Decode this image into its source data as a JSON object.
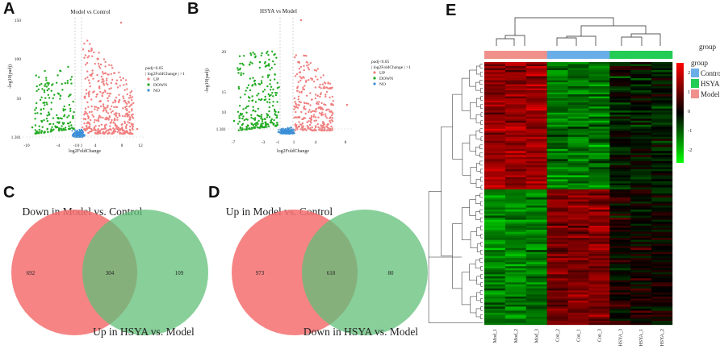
{
  "panels": {
    "a": {
      "letter": "A",
      "title": "Model vs Control",
      "xlabel": "log2FoldChange",
      "ylabel": "-log10(padj)"
    },
    "b": {
      "letter": "B",
      "title": "HSYA vs Model",
      "xlabel": "log2FoldChange",
      "ylabel": "-log10(padj)"
    },
    "c": {
      "letter": "C",
      "set_left": "Down in Model vs. Control",
      "set_right": "Up in HSYA vs. Model",
      "only_left": "692",
      "overlap": "304",
      "only_right": "109"
    },
    "d": {
      "letter": "D",
      "set_left": "Up in Model vs. Control",
      "set_right": "Down in HSYA vs. Model",
      "only_left": "973",
      "overlap": "618",
      "only_right": "80"
    },
    "e": {
      "letter": "E"
    }
  },
  "legend_volcano": {
    "line1": "padj<0.05",
    "line2": "| log2FoldChange | >1",
    "items": [
      {
        "label": "UP",
        "color": "#f08080"
      },
      {
        "label": "DOWN",
        "color": "#22aa22"
      },
      {
        "label": "NO",
        "color": "#3a8fd8"
      }
    ]
  },
  "chart_data": [
    {
      "type": "scatter",
      "title": "Model vs Control",
      "xlabel": "log2FoldChange",
      "ylabel": "-log10(padj)",
      "xticks": [
        "-10",
        "-4",
        "-1",
        "0",
        "1",
        "4",
        "8",
        "12"
      ],
      "yticks": [
        "1.301",
        "50",
        "100",
        "150"
      ],
      "thresholds": {
        "x": [
          -1,
          1
        ],
        "y": 1.301
      },
      "series": [
        {
          "name": "UP"
        },
        {
          "name": "DOWN"
        },
        {
          "name": "NO"
        }
      ]
    },
    {
      "type": "scatter",
      "title": "HSYA vs Model",
      "xlabel": "log2FoldChange",
      "ylabel": "-log10(padj)",
      "xticks": [
        "-7",
        "-3",
        "-1",
        "1",
        "4",
        "8"
      ],
      "yticks": [
        "1.301",
        "10",
        "15",
        "20"
      ],
      "thresholds": {
        "x": [
          -1,
          1
        ],
        "y": 1.301
      },
      "series": [
        {
          "name": "UP"
        },
        {
          "name": "DOWN"
        },
        {
          "name": "NO"
        }
      ]
    },
    {
      "type": "heatmap",
      "columns": [
        "Mod_1",
        "Mod_2",
        "Mod_3",
        "Con_2",
        "Con_1",
        "Con_3",
        "HSYA_3",
        "HSYA_1",
        "HSYA_2"
      ],
      "column_groups": [
        "Model",
        "Model",
        "Model",
        "Control",
        "Control",
        "Control",
        "HSYA",
        "HSYA",
        "HSYA"
      ],
      "group_legend": {
        "title": "group",
        "items": [
          {
            "label": "Control",
            "color": "#6aaee8"
          },
          {
            "label": "HSYA",
            "color": "#22cc55"
          },
          {
            "label": "Model",
            "color": "#f0908a"
          }
        ]
      },
      "color_scale": {
        "ticks": [
          "2",
          "1",
          "0",
          "-1",
          "-2"
        ],
        "high": "#ff0000",
        "mid": "#000000",
        "low": "#00ff00"
      }
    }
  ]
}
